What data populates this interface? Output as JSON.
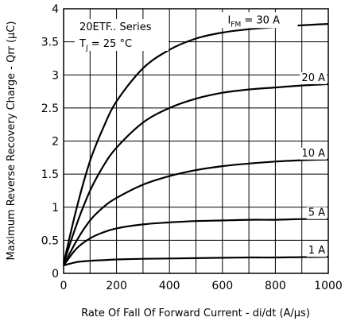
{
  "chart_data": {
    "type": "line",
    "title": "",
    "xlabel": "Rate Of Fall Of Forward Current - di/dt (A/μs)",
    "ylabel": "Maximum Reverse Recovery Charge - Qrr (μC)",
    "xlim": [
      0,
      1000
    ],
    "ylim": [
      0,
      4
    ],
    "xticks": [
      0,
      200,
      400,
      600,
      800,
      1000
    ],
    "yticks": [
      0,
      0.5,
      1,
      1.5,
      2,
      2.5,
      3,
      3.5,
      4
    ],
    "ytick_labels": [
      "0",
      "0.5",
      "1",
      "1.5",
      "2",
      "2.5",
      "3",
      "3.5",
      "4"
    ],
    "grid": true,
    "annotations": {
      "series_name": "20ETF.. Series",
      "condition_prefix": "T",
      "condition_sub": "J",
      "condition_suffix": " = 25 °C"
    },
    "x": [
      0,
      50,
      100,
      150,
      200,
      300,
      400,
      500,
      600,
      700,
      800,
      900,
      1000
    ],
    "series": [
      {
        "label_prefix": "I",
        "label_sub": "FM",
        "label_suffix": " = 30 A",
        "values": [
          0.15,
          1.0,
          1.7,
          2.2,
          2.6,
          3.1,
          3.38,
          3.55,
          3.64,
          3.69,
          3.72,
          3.75,
          3.77
        ]
      },
      {
        "label": "20 A",
        "values": [
          0.15,
          0.75,
          1.25,
          1.62,
          1.9,
          2.28,
          2.5,
          2.64,
          2.73,
          2.78,
          2.81,
          2.84,
          2.86
        ]
      },
      {
        "label": "10 A",
        "values": [
          0.12,
          0.5,
          0.8,
          1.0,
          1.14,
          1.34,
          1.47,
          1.56,
          1.62,
          1.66,
          1.69,
          1.71,
          1.72
        ]
      },
      {
        "label": "5 A",
        "values": [
          0.12,
          0.38,
          0.53,
          0.62,
          0.68,
          0.74,
          0.77,
          0.79,
          0.8,
          0.81,
          0.81,
          0.82,
          0.82
        ]
      },
      {
        "label": "1 A",
        "values": [
          0.12,
          0.17,
          0.19,
          0.2,
          0.21,
          0.22,
          0.225,
          0.23,
          0.235,
          0.24,
          0.24,
          0.245,
          0.25
        ]
      }
    ]
  }
}
